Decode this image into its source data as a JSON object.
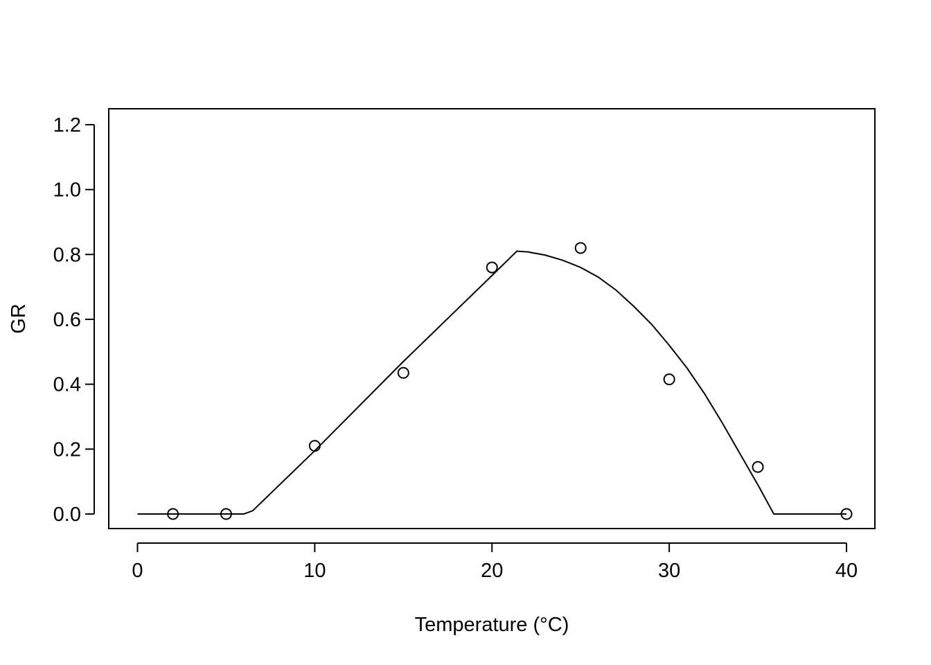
{
  "chart_data": {
    "type": "scatter",
    "title": "",
    "xlabel": "Temperature (°C)",
    "ylabel": "GR",
    "xlim": [
      0,
      40
    ],
    "ylim": [
      0,
      1.2
    ],
    "x_ticks": [
      0,
      10,
      20,
      30,
      40
    ],
    "x_tick_labels": [
      "0",
      "10",
      "20",
      "30",
      "40"
    ],
    "y_ticks": [
      0.0,
      0.2,
      0.4,
      0.6,
      0.8,
      1.0,
      1.2
    ],
    "y_tick_labels": [
      "0.0",
      "0.2",
      "0.4",
      "0.6",
      "0.8",
      "1.0",
      "1.2"
    ],
    "grid": false,
    "series": [
      {
        "marker": "open-circle",
        "points": [
          {
            "x": 2,
            "y": 0.0
          },
          {
            "x": 5,
            "y": 0.0
          },
          {
            "x": 10,
            "y": 0.21
          },
          {
            "x": 15,
            "y": 0.435
          },
          {
            "x": 20,
            "y": 0.76
          },
          {
            "x": 25,
            "y": 0.82
          },
          {
            "x": 30,
            "y": 0.415
          },
          {
            "x": 35,
            "y": 0.145
          },
          {
            "x": 40,
            "y": 0.0
          }
        ]
      },
      {
        "marker": "line",
        "points": [
          {
            "x": 0,
            "y": 0.0
          },
          {
            "x": 6.0,
            "y": 0.0
          },
          {
            "x": 6.5,
            "y": 0.01
          },
          {
            "x": 10,
            "y": 0.195
          },
          {
            "x": 15,
            "y": 0.47
          },
          {
            "x": 20,
            "y": 0.735
          },
          {
            "x": 21.4,
            "y": 0.81
          },
          {
            "x": 22,
            "y": 0.808
          },
          {
            "x": 23,
            "y": 0.798
          },
          {
            "x": 24,
            "y": 0.782
          },
          {
            "x": 25,
            "y": 0.76
          },
          {
            "x": 26,
            "y": 0.73
          },
          {
            "x": 27,
            "y": 0.69
          },
          {
            "x": 28,
            "y": 0.64
          },
          {
            "x": 29,
            "y": 0.585
          },
          {
            "x": 30,
            "y": 0.52
          },
          {
            "x": 31,
            "y": 0.45
          },
          {
            "x": 32,
            "y": 0.37
          },
          {
            "x": 33,
            "y": 0.28
          },
          {
            "x": 34,
            "y": 0.185
          },
          {
            "x": 35,
            "y": 0.09
          },
          {
            "x": 35.9,
            "y": 0.0
          },
          {
            "x": 36.3,
            "y": 0.0
          },
          {
            "x": 40,
            "y": 0.0
          }
        ]
      }
    ]
  }
}
